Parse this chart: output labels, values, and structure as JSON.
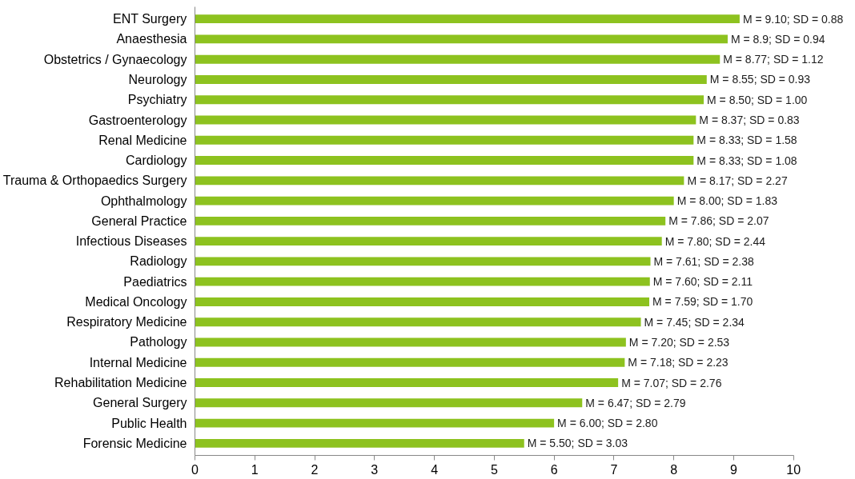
{
  "chart_data": {
    "type": "bar",
    "orientation": "horizontal",
    "color": "#8dc21f",
    "categories": [
      "ENT Surgery",
      "Anaesthesia",
      "Obstetrics / Gynaecology",
      "Neurology",
      "Psychiatry",
      "Gastroenterology",
      "Renal Medicine",
      "Cardiology",
      "Trauma & Orthopaedics Surgery",
      "Ophthalmology",
      "General Practice",
      "Infectious Diseases",
      "Radiology",
      "Paediatrics",
      "Medical Oncology",
      "Respiratory Medicine",
      "Pathology",
      "Internal Medicine",
      "Rehabilitation Medicine",
      "General Surgery",
      "Public Health",
      "Forensic Medicine"
    ],
    "values": [
      9.1,
      8.9,
      8.77,
      8.55,
      8.5,
      8.37,
      8.33,
      8.33,
      8.17,
      8.0,
      7.86,
      7.8,
      7.61,
      7.6,
      7.59,
      7.45,
      7.2,
      7.18,
      7.07,
      6.47,
      6.0,
      5.5
    ],
    "value_labels": [
      "M = 9.10; SD = 0.88",
      "M = 8.9; SD = 0.94",
      "M = 8.77; SD = 1.12",
      "M = 8.55; SD = 0.93",
      "M = 8.50; SD = 1.00",
      "M = 8.37; SD = 0.83",
      "M = 8.33; SD = 1.58",
      "M = 8.33; SD = 1.08",
      "M = 8.17; SD = 2.27",
      "M = 8.00; SD = 1.83",
      "M = 7.86; SD = 2.07",
      "M = 7.80; SD = 2.44",
      "M = 7.61; SD = 2.38",
      "M = 7.60; SD = 2.11",
      "M = 7.59; SD = 1.70",
      "M = 7.45; SD = 2.34",
      "M = 7.20; SD = 2.53",
      "M = 7.18; SD = 2.23",
      "M = 7.07; SD = 2.76",
      "M = 6.47; SD = 2.79",
      "M = 6.00; SD = 2.80",
      "M = 5.50; SD = 3.03"
    ],
    "xlim": [
      0,
      10
    ],
    "xticks": [
      0,
      1,
      2,
      3,
      4,
      5,
      6,
      7,
      8,
      9,
      10
    ]
  }
}
